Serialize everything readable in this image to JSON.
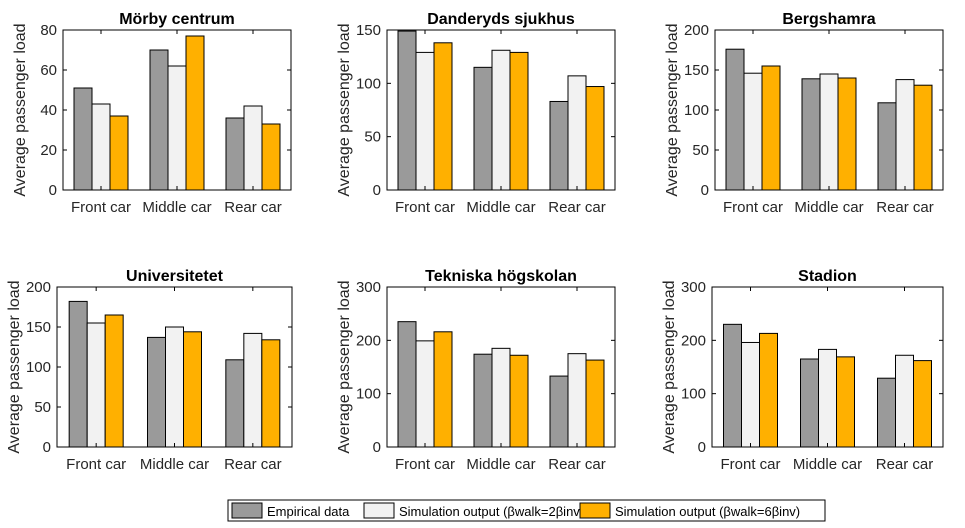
{
  "figure": {
    "colors": {
      "empirical": "#9a9a9a",
      "sim2": "#f2f2f2",
      "sim6": "#ffb000",
      "stroke": "#000000",
      "text": "#262626"
    },
    "legend": {
      "placement": "bottom-center",
      "entries": [
        "Empirical data",
        "Simulation output (βwalk=2βinv)",
        "Simulation output (βwalk=6βinv)"
      ]
    }
  },
  "chart_data": [
    {
      "type": "bar",
      "title": "Mörby centrum",
      "ylabel": "Average passenger load",
      "categories": [
        "Front car",
        "Middle car",
        "Rear car"
      ],
      "ylim": [
        0,
        80
      ],
      "yticks": [
        0,
        20,
        40,
        60,
        80
      ],
      "series": [
        {
          "name": "Empirical data",
          "values": [
            51,
            70,
            36
          ]
        },
        {
          "name": "Simulation output (βwalk=2βinv)",
          "values": [
            43,
            62,
            42
          ]
        },
        {
          "name": "Simulation output (βwalk=6βinv)",
          "values": [
            37,
            77,
            33
          ]
        }
      ]
    },
    {
      "type": "bar",
      "title": "Danderyds sjukhus",
      "ylabel": "Average passenger load",
      "categories": [
        "Front car",
        "Middle car",
        "Rear car"
      ],
      "ylim": [
        0,
        150
      ],
      "yticks": [
        0,
        50,
        100,
        150
      ],
      "series": [
        {
          "name": "Empirical data",
          "values": [
            149,
            115,
            83
          ]
        },
        {
          "name": "Simulation output (βwalk=2βinv)",
          "values": [
            129,
            131,
            107
          ]
        },
        {
          "name": "Simulation output (βwalk=6βinv)",
          "values": [
            138,
            129,
            97
          ]
        }
      ]
    },
    {
      "type": "bar",
      "title": "Bergshamra",
      "ylabel": "Average passenger load",
      "categories": [
        "Front car",
        "Middle car",
        "Rear car"
      ],
      "ylim": [
        0,
        200
      ],
      "yticks": [
        0,
        50,
        100,
        150,
        200
      ],
      "series": [
        {
          "name": "Empirical data",
          "values": [
            176,
            139,
            109
          ]
        },
        {
          "name": "Simulation output (βwalk=2βinv)",
          "values": [
            146,
            145,
            138
          ]
        },
        {
          "name": "Simulation output (βwalk=6βinv)",
          "values": [
            155,
            140,
            131
          ]
        }
      ]
    },
    {
      "type": "bar",
      "title": "Universitetet",
      "ylabel": "Average passenger load",
      "categories": [
        "Front car",
        "Middle car",
        "Rear car"
      ],
      "ylim": [
        0,
        200
      ],
      "yticks": [
        0,
        50,
        100,
        150,
        200
      ],
      "series": [
        {
          "name": "Empirical data",
          "values": [
            182,
            137,
            109
          ]
        },
        {
          "name": "Simulation output (βwalk=2βinv)",
          "values": [
            155,
            150,
            142
          ]
        },
        {
          "name": "Simulation output (βwalk=6βinv)",
          "values": [
            165,
            144,
            134
          ]
        }
      ]
    },
    {
      "type": "bar",
      "title": "Tekniska högskolan",
      "ylabel": "Average passenger load",
      "categories": [
        "Front car",
        "Middle car",
        "Rear car"
      ],
      "ylim": [
        0,
        300
      ],
      "yticks": [
        0,
        100,
        200,
        300
      ],
      "series": [
        {
          "name": "Empirical data",
          "values": [
            235,
            174,
            133
          ]
        },
        {
          "name": "Simulation output (βwalk=2βinv)",
          "values": [
            199,
            185,
            175
          ]
        },
        {
          "name": "Simulation output (βwalk=6βinv)",
          "values": [
            216,
            172,
            163
          ]
        }
      ]
    },
    {
      "type": "bar",
      "title": "Stadion",
      "ylabel": "Average passenger load",
      "categories": [
        "Front car",
        "Middle car",
        "Rear car"
      ],
      "ylim": [
        0,
        300
      ],
      "yticks": [
        0,
        100,
        200,
        300
      ],
      "series": [
        {
          "name": "Empirical data",
          "values": [
            230,
            165,
            129
          ]
        },
        {
          "name": "Simulation output (βwalk=2βinv)",
          "values": [
            196,
            183,
            172
          ]
        },
        {
          "name": "Simulation output (βwalk=6βinv)",
          "values": [
            213,
            169,
            162
          ]
        }
      ]
    }
  ]
}
